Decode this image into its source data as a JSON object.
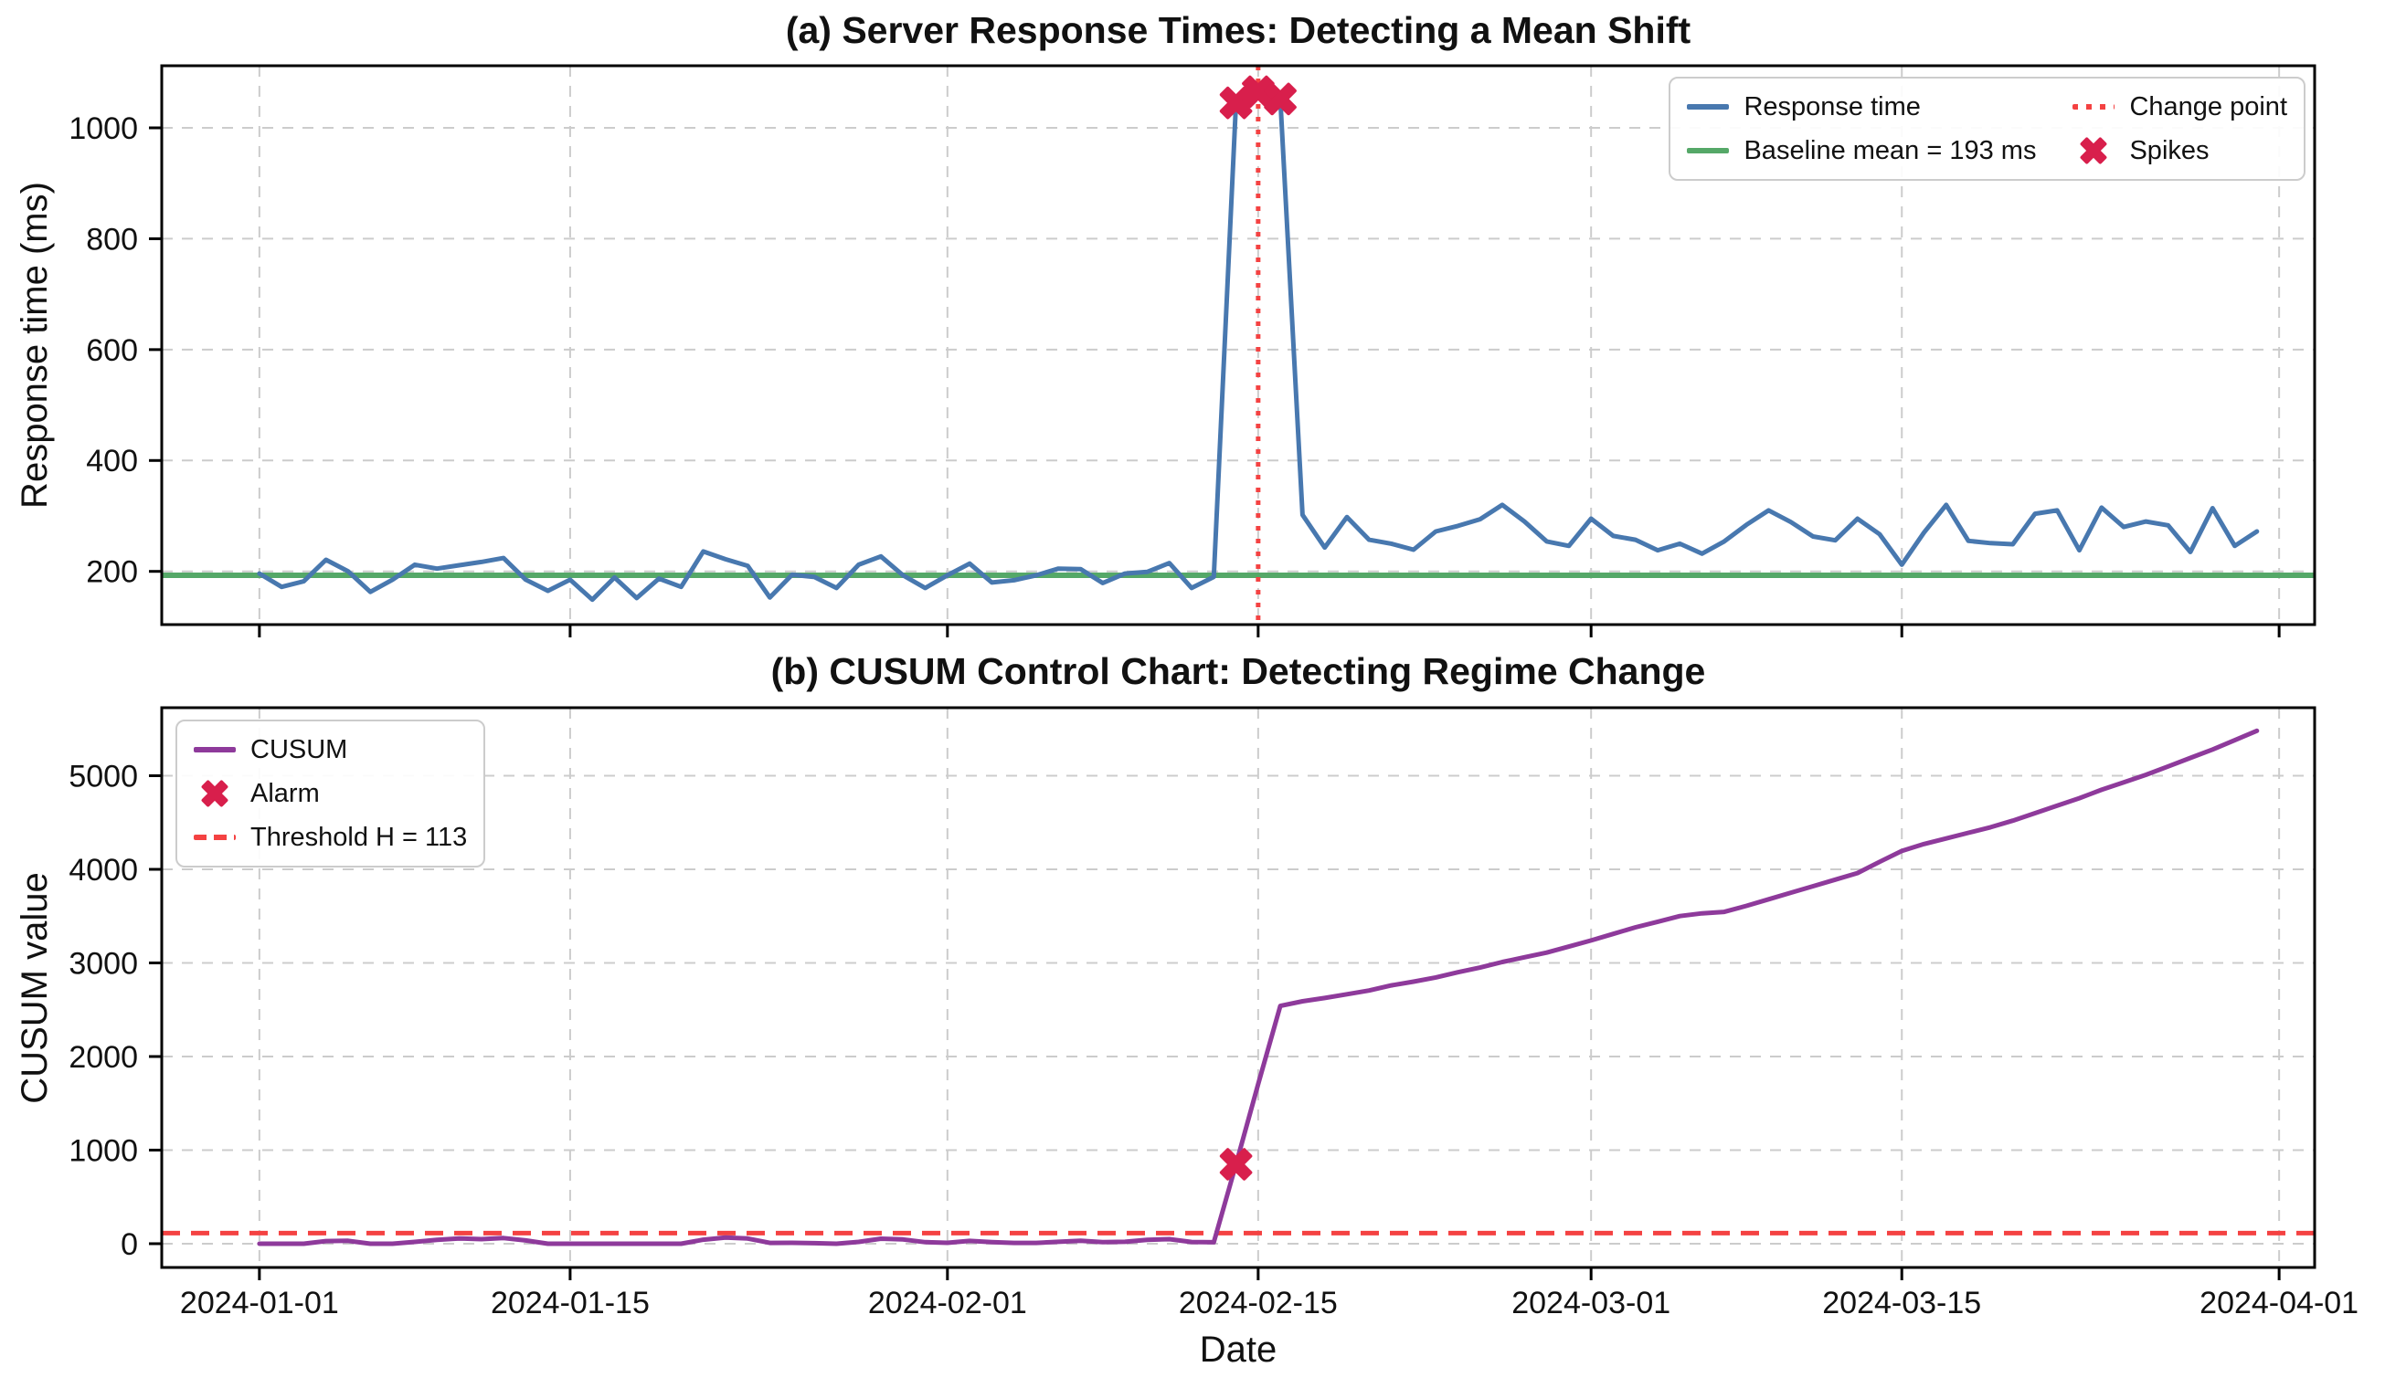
{
  "figure": {
    "xlabel": "Date",
    "background": "#ffffff",
    "x_ticks": [
      {
        "label": "2024-01-01",
        "day": 0
      },
      {
        "label": "2024-01-15",
        "day": 14
      },
      {
        "label": "2024-02-01",
        "day": 31
      },
      {
        "label": "2024-02-15",
        "day": 45
      },
      {
        "label": "2024-03-01",
        "day": 60
      },
      {
        "label": "2024-03-15",
        "day": 74
      },
      {
        "label": "2024-04-01",
        "day": 91
      }
    ],
    "grid_color": "#cccccc"
  },
  "chart_data": [
    {
      "type": "line",
      "title": "(a) Server Response Times: Detecting a Mean Shift",
      "ylabel": "Response time (ms)",
      "x": {
        "start": "2024-01-01",
        "step_days": 1,
        "n": 91
      },
      "ylim": [
        104,
        1112
      ],
      "yticks": [
        200,
        400,
        600,
        800,
        1000
      ],
      "legend_position": "upper right",
      "series": [
        {
          "name": "Response time",
          "color": "#4878af",
          "values": [
            196,
            172,
            182,
            221,
            200,
            163,
            185,
            212,
            205,
            211,
            217,
            224,
            185,
            165,
            185,
            149,
            189,
            152,
            187,
            172,
            236,
            222,
            210,
            153,
            194,
            190,
            170,
            212,
            227,
            193,
            170,
            193,
            214,
            180,
            184,
            193,
            205,
            204,
            179,
            196,
            199,
            215,
            170,
            190,
            1045,
            1065,
            1052,
            302,
            243,
            298,
            257,
            250,
            239,
            272,
            282,
            294,
            320,
            290,
            254,
            246,
            295,
            264,
            257,
            238,
            250,
            232,
            254,
            284,
            310,
            289,
            263,
            256,
            295,
            267,
            212,
            270,
            320,
            255,
            251,
            249,
            304,
            310,
            238,
            315,
            280,
            290,
            283,
            235,
            314,
            246,
            272
          ]
        }
      ],
      "baseline": {
        "label": "Baseline mean = 193 ms",
        "value": 193,
        "color": "#55a868"
      },
      "change_point": {
        "label": "Change point",
        "day": 45,
        "date": "2024-02-15",
        "color": "#f44242",
        "style": "dotted"
      },
      "spikes": {
        "label": "Spikes",
        "color": "#d81f4c",
        "points": [
          {
            "day": 44,
            "value": 1045
          },
          {
            "day": 45,
            "value": 1065
          },
          {
            "day": 46,
            "value": 1052
          }
        ]
      }
    },
    {
      "type": "line",
      "title": "(b) CUSUM Control Chart: Detecting Regime Change",
      "ylabel": "CUSUM value",
      "xlabel": "Date",
      "x": {
        "start": "2024-01-01",
        "step_days": 1,
        "n": 91
      },
      "ylim": [
        -254,
        5727
      ],
      "yticks": [
        0,
        1000,
        2000,
        3000,
        4000,
        5000
      ],
      "legend_position": "upper left",
      "series": [
        {
          "name": "CUSUM",
          "color": "#8e3a9b",
          "values": [
            0,
            0,
            0,
            28,
            31,
            0,
            0,
            19,
            41,
            56,
            48,
            60,
            35,
            0,
            0,
            0,
            0,
            0,
            0,
            0,
            43,
            65,
            55,
            8,
            9,
            6,
            0,
            19,
            53,
            46,
            16,
            9,
            30,
            17,
            8,
            8,
            20,
            31,
            17,
            20,
            42,
            48,
            18,
            15,
            849,
            1706,
            2540,
            2590,
            2625,
            2665,
            2705,
            2760,
            2800,
            2845,
            2900,
            2950,
            3010,
            3060,
            3110,
            3175,
            3240,
            3310,
            3380,
            3440,
            3500,
            3530,
            3545,
            3610,
            3680,
            3750,
            3820,
            3890,
            3960,
            4080,
            4196,
            4270,
            4330,
            4390,
            4450,
            4520,
            4600,
            4680,
            4760,
            4850,
            4930,
            5010,
            5100,
            5190,
            5280,
            5380,
            5480
          ]
        }
      ],
      "threshold": {
        "label": "Threshold H = 113",
        "value": 113,
        "color": "#f44242",
        "style": "dashed"
      },
      "alarm": {
        "label": "Alarm",
        "color": "#d81f4c",
        "points": [
          {
            "day": 44,
            "value": 849
          }
        ]
      }
    }
  ]
}
